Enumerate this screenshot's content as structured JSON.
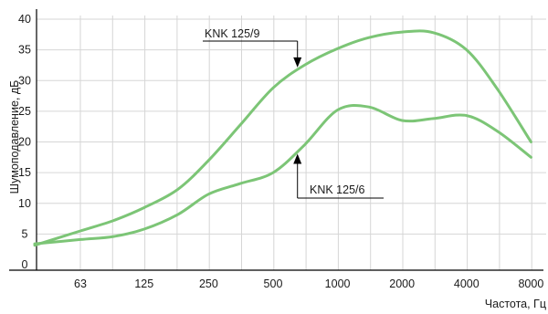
{
  "chart_data": {
    "type": "line",
    "categories": [
      "63",
      "125",
      "250",
      "500",
      "1000",
      "2000",
      "4000",
      "8000"
    ],
    "x": [
      31.5,
      63,
      90,
      125,
      180,
      250,
      350,
      500,
      700,
      1000,
      1400,
      2000,
      2800,
      4000,
      5600,
      8000,
      11000
    ],
    "xlabel": "Частота, Гц",
    "ylabel": "Шумоподавление, дБ",
    "ylim": [
      0,
      40
    ],
    "yticks": [
      0,
      5,
      10,
      15,
      20,
      25,
      30,
      35,
      40
    ],
    "grid": true,
    "colors": {
      "curve": "#7cc576",
      "axis": "#000000",
      "grid": "#d6d6d6"
    },
    "series": [
      {
        "name": "KNK 125/9",
        "values": [
          null,
          5.5,
          7.2,
          9.3,
          12.3,
          17.0,
          22.7,
          28.8,
          32.5,
          35.2,
          37.0,
          37.9,
          37.8,
          35.0,
          28.5,
          20.0,
          null
        ]
      },
      {
        "name": "KNK 125/6",
        "values": [
          null,
          4.1,
          4.6,
          5.8,
          8.2,
          11.5,
          13.2,
          15.0,
          19.5,
          25.2,
          25.7,
          23.5,
          23.8,
          24.3,
          21.7,
          17.5,
          null
        ]
      }
    ],
    "annotations": [
      {
        "text": "KNK 125/9",
        "series": 0,
        "x": 650
      },
      {
        "text": "KNK 125/6",
        "series": 1,
        "x": 650
      }
    ]
  }
}
